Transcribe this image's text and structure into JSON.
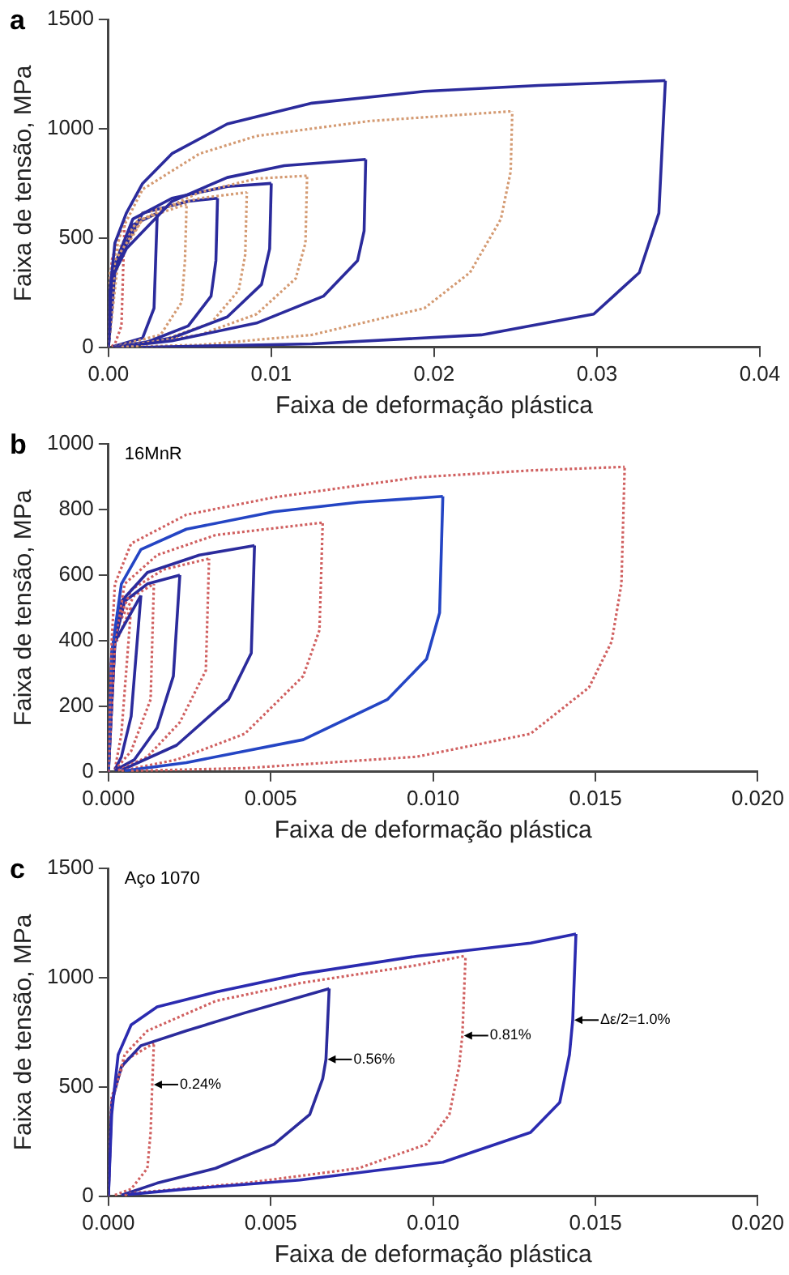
{
  "chart_data": [
    {
      "type": "line",
      "title": "a",
      "xlabel": "Faixa de deformação plástica",
      "ylabel": "Faixa de tensão, MPa",
      "xlim": [
        0,
        0.04
      ],
      "ylim": [
        0,
        1500
      ],
      "xticks": [
        {
          "value": 0,
          "label": "0.00"
        },
        {
          "value": 0.01,
          "label": "0.01"
        },
        {
          "value": 0.02,
          "label": "0.02"
        },
        {
          "value": 0.03,
          "label": "0.03"
        },
        {
          "value": 0.04,
          "label": "0.04"
        }
      ],
      "yticks": [
        0,
        500,
        1000,
        1500
      ],
      "series": [
        {
          "color": "#2b2b9c",
          "x": [
            0,
            0.0001,
            0.0004,
            0.0011,
            0.0021,
            0.0039,
            0.0073,
            0.0125,
            0.0194,
            0.0264,
            0.0342
          ],
          "values": [
            0,
            261,
            478,
            614,
            750,
            886,
            1022,
            1117,
            1171,
            1198,
            1220
          ]
        },
        {
          "color": "#2b2b9c",
          "x": [
            0.002,
            0.0125,
            0.0229,
            0.0298,
            0.0326,
            0.0338,
            0.0342
          ],
          "values": [
            0,
            16,
            57,
            152,
            342,
            614,
            1220
          ]
        },
        {
          "color": "#d49a72",
          "line_style": "dotted",
          "x": [
            0,
            0.0001,
            0.0008,
            0.0021,
            0.0056,
            0.0091,
            0.016,
            0.0248
          ],
          "values": [
            0,
            342,
            533,
            723,
            886,
            967,
            1035,
            1080
          ]
        },
        {
          "color": "#d49a72",
          "line_style": "dotted",
          "x": [
            0.0008,
            0.0056,
            0.0125,
            0.0194,
            0.0222,
            0.0241,
            0.0247,
            0.0248
          ],
          "values": [
            2,
            11,
            57,
            179,
            342,
            587,
            804,
            1080
          ]
        },
        {
          "color": "#2b2b9c",
          "x": [
            0,
            0.0002,
            0.0011,
            0.0039,
            0.0073,
            0.0108,
            0.0158
          ],
          "values": [
            0,
            315,
            451,
            668,
            777,
            831,
            860
          ]
        },
        {
          "color": "#2b2b9c",
          "x": [
            0.0006,
            0.0039,
            0.0091,
            0.0132,
            0.0153,
            0.0157,
            0.0158
          ],
          "values": [
            2,
            30,
            111,
            234,
            397,
            532,
            860
          ]
        },
        {
          "color": "#d49a72",
          "line_style": "dotted",
          "x": [
            0,
            0.0004,
            0.0021,
            0.0056,
            0.0091,
            0.0122
          ],
          "values": [
            0,
            397,
            587,
            709,
            772,
            785
          ]
        },
        {
          "color": "#d49a72",
          "line_style": "dotted",
          "x": [
            0.0006,
            0.0056,
            0.0091,
            0.0115,
            0.0121,
            0.0122
          ],
          "values": [
            3,
            57,
            152,
            315,
            478,
            785
          ]
        },
        {
          "color": "#2b2b9c",
          "x": [
            0,
            0.0002,
            0.0015,
            0.0039,
            0.0073,
            0.01
          ],
          "values": [
            0,
            342,
            587,
            682,
            736,
            750
          ]
        },
        {
          "color": "#2b2b9c",
          "x": [
            0.0005,
            0.0039,
            0.0073,
            0.0094,
            0.0099,
            0.01
          ],
          "values": [
            3,
            43,
            139,
            288,
            451,
            750
          ]
        },
        {
          "color": "#d49a72",
          "line_style": "dotted",
          "x": [
            0,
            0.0004,
            0.0021,
            0.0056,
            0.0085
          ],
          "values": [
            0,
            424,
            614,
            682,
            709
          ]
        },
        {
          "color": "#d49a72",
          "line_style": "dotted",
          "x": [
            0.0005,
            0.0032,
            0.0063,
            0.008,
            0.0084,
            0.0085
          ],
          "values": [
            3,
            30,
            111,
            261,
            424,
            709
          ]
        },
        {
          "color": "#2b2b9c",
          "x": [
            0,
            0.0004,
            0.0021,
            0.0049,
            0.0067
          ],
          "values": [
            0,
            370,
            614,
            668,
            682
          ]
        },
        {
          "color": "#2b2b9c",
          "x": [
            0.0004,
            0.0021,
            0.0049,
            0.0063,
            0.0066,
            0.0067
          ],
          "values": [
            2,
            16,
            98,
            234,
            397,
            682
          ]
        },
        {
          "color": "#d49a72",
          "line_style": "dotted",
          "x": [
            0,
            0.0006,
            0.0021,
            0.0048
          ],
          "values": [
            0,
            397,
            587,
            655
          ]
        },
        {
          "color": "#d49a72",
          "line_style": "dotted",
          "x": [
            0.0004,
            0.0032,
            0.0045,
            0.0047,
            0.0048
          ],
          "values": [
            4,
            57,
            207,
            397,
            655
          ]
        },
        {
          "color": "#2b2b9c",
          "x": [
            0,
            0.0004,
            0.0015,
            0.003
          ],
          "values": [
            0,
            342,
            560,
            614
          ]
        },
        {
          "color": "#2b2b9c",
          "x": [
            0.0003,
            0.0021,
            0.0028,
            0.0029,
            0.003
          ],
          "values": [
            4,
            43,
            179,
            397,
            614
          ]
        },
        {
          "color": "#d06060",
          "line_style": "dotted",
          "x": [
            0,
            0.0002,
            0.001
          ],
          "values": [
            0,
            397,
            587
          ]
        },
        {
          "color": "#d06060",
          "line_style": "dotted",
          "x": [
            0.0002,
            0.0004,
            0.0008,
            0.0009,
            0.001
          ],
          "values": [
            5,
            16,
            98,
            342,
            587
          ]
        }
      ]
    },
    {
      "type": "line",
      "title": "b",
      "xlabel": "Faixa de deformação plástica",
      "ylabel": "Faixa de tensão, MPa",
      "xlim": [
        0,
        0.02
      ],
      "ylim": [
        0,
        1000
      ],
      "xticks": [
        {
          "value": 0,
          "label": "0.000"
        },
        {
          "value": 0.005,
          "label": "0.005"
        },
        {
          "value": 0.01,
          "label": "0.010"
        },
        {
          "value": 0.015,
          "label": "0.015"
        },
        {
          "value": 0.02,
          "label": "0.020"
        }
      ],
      "yticks": [
        0,
        200,
        400,
        600,
        800,
        1000
      ],
      "annotations": [
        "16MnR"
      ],
      "series": [
        {
          "color": "#d06060",
          "line_style": "dotted",
          "x": [
            0,
            0.0001,
            0.0002,
            0.0007,
            0.0024,
            0.0051,
            0.0095,
            0.013,
            0.0159
          ],
          "values": [
            0,
            397,
            573,
            696,
            784,
            837,
            898,
            919,
            930
          ]
        },
        {
          "color": "#d06060",
          "line_style": "dotted",
          "x": [
            0.0007,
            0.0042,
            0.0095,
            0.013,
            0.0148,
            0.0155,
            0.0158,
            0.0159
          ],
          "values": [
            3,
            11,
            46,
            116,
            257,
            397,
            573,
            930
          ]
        },
        {
          "color": "#2445c4",
          "x": [
            0,
            0.0001,
            0.0004,
            0.001,
            0.0024,
            0.0051,
            0.0077,
            0.0103
          ],
          "values": [
            0,
            362,
            573,
            678,
            740,
            793,
            822,
            840
          ]
        },
        {
          "color": "#2445c4",
          "x": [
            0.0005,
            0.0024,
            0.006,
            0.0086,
            0.0098,
            0.0102,
            0.0103
          ],
          "values": [
            3,
            28,
            98,
            221,
            344,
            485,
            840
          ]
        },
        {
          "color": "#d06060",
          "line_style": "dotted",
          "x": [
            0,
            0.0002,
            0.0005,
            0.0015,
            0.0033,
            0.0066
          ],
          "values": [
            0,
            397,
            573,
            661,
            722,
            760
          ]
        },
        {
          "color": "#d06060",
          "line_style": "dotted",
          "x": [
            0.0004,
            0.0021,
            0.0042,
            0.006,
            0.0065,
            0.0066
          ],
          "values": [
            3,
            37,
            116,
            292,
            432,
            760
          ]
        },
        {
          "color": "#2b2b9c",
          "x": [
            0,
            0.0001,
            0.0004,
            0.0012,
            0.0028,
            0.0045
          ],
          "values": [
            0,
            362,
            520,
            608,
            661,
            690
          ]
        },
        {
          "color": "#2b2b9c",
          "x": [
            0.0004,
            0.0021,
            0.0037,
            0.0044,
            0.0045
          ],
          "values": [
            5,
            81,
            221,
            362,
            690
          ]
        },
        {
          "color": "#d06060",
          "line_style": "dotted",
          "x": [
            0,
            0.0002,
            0.0007,
            0.0017,
            0.0031
          ],
          "values": [
            0,
            432,
            555,
            617,
            650
          ]
        },
        {
          "color": "#d06060",
          "line_style": "dotted",
          "x": [
            0.0003,
            0.0012,
            0.0022,
            0.003,
            0.0031
          ],
          "values": [
            4,
            46,
            151,
            309,
            650
          ]
        },
        {
          "color": "#2b2b9c",
          "x": [
            0,
            0.0002,
            0.0005,
            0.0012,
            0.0022
          ],
          "values": [
            0,
            397,
            520,
            573,
            600
          ]
        },
        {
          "color": "#2b2b9c",
          "x": [
            0.0002,
            0.0008,
            0.0015,
            0.002,
            0.0022
          ],
          "values": [
            4,
            37,
            134,
            292,
            600
          ]
        },
        {
          "color": "#d06060",
          "line_style": "dotted",
          "x": [
            0,
            0.0002,
            0.0008,
            0.0014
          ],
          "values": [
            0,
            432,
            538,
            573
          ]
        },
        {
          "color": "#d06060",
          "line_style": "dotted",
          "x": [
            0.0002,
            0.0007,
            0.0013,
            0.0014
          ],
          "values": [
            5,
            63,
            221,
            573
          ]
        },
        {
          "color": "#2b2b9c",
          "x": [
            0,
            0.0002,
            0.001
          ],
          "values": [
            0,
            397,
            538
          ]
        },
        {
          "color": "#2b2b9c",
          "x": [
            0.0002,
            0.0004,
            0.0007,
            0.001
          ],
          "values": [
            6,
            46,
            169,
            538
          ]
        },
        {
          "color": "#d06060",
          "line_style": "dotted",
          "x": [
            0,
            0.0001,
            0.0007
          ],
          "values": [
            0,
            362,
            503
          ]
        },
        {
          "color": "#d06060",
          "line_style": "dotted",
          "x": [
            0.0002,
            0.0004,
            0.0007
          ],
          "values": [
            8,
            116,
            503
          ]
        }
      ]
    },
    {
      "type": "line",
      "title": "c",
      "xlabel": "Faixa de deformação plástica",
      "ylabel": "Faixa de tensão, MPa",
      "xlim": [
        0,
        0.02
      ],
      "ylim": [
        0,
        1500
      ],
      "xticks": [
        {
          "value": 0,
          "label": "0.000"
        },
        {
          "value": 0.005,
          "label": "0.005"
        },
        {
          "value": 0.01,
          "label": "0.010"
        },
        {
          "value": 0.015,
          "label": "0.015"
        },
        {
          "value": 0.02,
          "label": "0.020"
        }
      ],
      "yticks": [
        0,
        500,
        1000,
        1500
      ],
      "annotations": [
        "Aço 1070",
        {
          "text": "0.24%",
          "x": 0.00135,
          "y": 511
        },
        {
          "text": "0.56%",
          "x": 0.0067,
          "y": 626
        },
        {
          "text": "0.81%",
          "x": 0.0109,
          "y": 735
        },
        {
          "text": "Δε/2=1.0%",
          "x": 0.0143,
          "y": 806
        }
      ],
      "series": [
        {
          "color": "#2b2bb0",
          "x": [
            0,
            0.0001,
            0.0003,
            0.0007,
            0.0015,
            0.0033,
            0.0059,
            0.0095,
            0.013,
            0.0144
          ],
          "values": [
            0,
            374,
            648,
            784,
            866,
            934,
            1016,
            1098,
            1158,
            1200
          ]
        },
        {
          "color": "#2b2bb0",
          "x": [
            0.0006,
            0.0024,
            0.0059,
            0.0103,
            0.013,
            0.0139,
            0.0142,
            0.0143,
            0.0144
          ],
          "values": [
            8,
            33,
            74,
            156,
            292,
            429,
            648,
            806,
            1200
          ]
        },
        {
          "color": "#d06060",
          "line_style": "dotted",
          "x": [
            0,
            0.0001,
            0.0005,
            0.0012,
            0.0033,
            0.0059,
            0.0095,
            0.011
          ],
          "values": [
            0,
            429,
            648,
            757,
            893,
            975,
            1057,
            1100
          ]
        },
        {
          "color": "#d06060",
          "line_style": "dotted",
          "x": [
            0.0005,
            0.0007,
            0.0042,
            0.0077,
            0.0098,
            0.0105,
            0.0108,
            0.0109,
            0.011
          ],
          "values": [
            3,
            14,
            60,
            128,
            238,
            374,
            593,
            735,
            1100
          ]
        },
        {
          "color": "#2b2b9c",
          "x": [
            0,
            0.0001,
            0.0004,
            0.001,
            0.0024,
            0.0042,
            0.0068
          ],
          "values": [
            0,
            429,
            593,
            689,
            757,
            839,
            950
          ]
        },
        {
          "color": "#2b2b9c",
          "x": [
            0.0004,
            0.0015,
            0.0033,
            0.0051,
            0.0062,
            0.0066,
            0.0067,
            0.0068
          ],
          "values": [
            5,
            60,
            128,
            238,
            374,
            538,
            626,
            950
          ]
        },
        {
          "color": "#d06060",
          "line_style": "dotted",
          "x": [
            0,
            0.0001,
            0.0005,
            0.0014
          ],
          "values": [
            0,
            456,
            620,
            700
          ]
        },
        {
          "color": "#d06060",
          "line_style": "dotted",
          "x": [
            0.0002,
            0.0007,
            0.0012,
            0.0013,
            0.00135,
            0.0014
          ],
          "values": [
            6,
            33,
            128,
            292,
            511,
            700
          ]
        }
      ]
    }
  ]
}
